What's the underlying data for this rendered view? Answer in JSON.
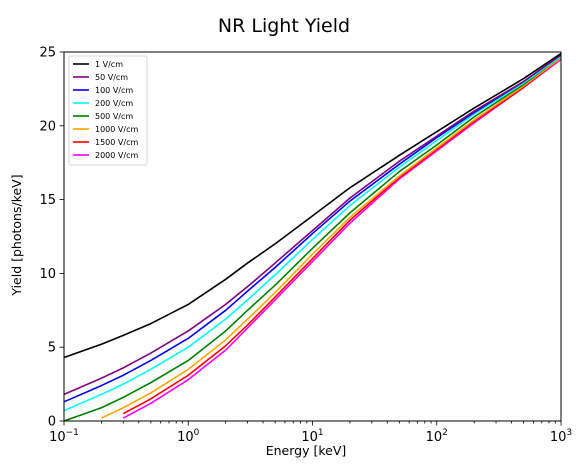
{
  "chart_data": {
    "type": "line",
    "title": "NR Light Yield",
    "xlabel": "Energy [keV]",
    "ylabel": "Yield [photons/keV]",
    "xscale": "log",
    "xlim": [
      0.1,
      1000
    ],
    "ylim": [
      0,
      25
    ],
    "x_ticks": [
      {
        "value": 0.1,
        "base": "10",
        "exp": "−1"
      },
      {
        "value": 1,
        "base": "10",
        "exp": "0"
      },
      {
        "value": 10,
        "base": "10",
        "exp": "1"
      },
      {
        "value": 100,
        "base": "10",
        "exp": "2"
      },
      {
        "value": 1000,
        "base": "10",
        "exp": "3"
      }
    ],
    "y_ticks": [
      0,
      5,
      10,
      15,
      20,
      25
    ],
    "grid": false,
    "legend_position": "top-left",
    "x": [
      0.1,
      0.2,
      0.3,
      0.5,
      1,
      2,
      3,
      5,
      10,
      20,
      50,
      100,
      200,
      500,
      1000
    ],
    "series": [
      {
        "name": "1 V/cm",
        "color": "#000000",
        "values": [
          4.3,
          5.2,
          5.8,
          6.6,
          7.9,
          9.6,
          10.7,
          12.0,
          13.9,
          15.8,
          18.0,
          19.6,
          21.2,
          23.2,
          24.9
        ]
      },
      {
        "name": "50 V/cm",
        "color": "#800080",
        "values": [
          1.8,
          2.9,
          3.6,
          4.6,
          6.1,
          7.9,
          9.1,
          10.7,
          12.9,
          15.1,
          17.6,
          19.3,
          21.0,
          23.0,
          24.8
        ]
      },
      {
        "name": "100 V/cm",
        "color": "#0000ff",
        "values": [
          1.3,
          2.4,
          3.1,
          4.1,
          5.6,
          7.5,
          8.8,
          10.4,
          12.7,
          14.9,
          17.4,
          19.2,
          20.9,
          23.0,
          24.8
        ]
      },
      {
        "name": "200 V/cm",
        "color": "#00ffff",
        "values": [
          0.7,
          1.8,
          2.5,
          3.5,
          5.0,
          6.9,
          8.2,
          9.9,
          12.3,
          14.6,
          17.2,
          19.0,
          20.8,
          22.9,
          24.7
        ]
      },
      {
        "name": "500 V/cm",
        "color": "#008000",
        "values": [
          0.0,
          0.9,
          1.6,
          2.6,
          4.1,
          6.1,
          7.5,
          9.2,
          11.7,
          14.1,
          16.9,
          18.7,
          20.6,
          22.8,
          24.7
        ]
      },
      {
        "name": "1000 V/cm",
        "color": "#ffa500",
        "values": [
          null,
          0.2,
          0.9,
          1.9,
          3.5,
          5.5,
          6.9,
          8.7,
          11.3,
          13.8,
          16.6,
          18.5,
          20.4,
          22.7,
          24.6
        ]
      },
      {
        "name": "1500 V/cm",
        "color": "#ff0000",
        "values": [
          null,
          null,
          0.5,
          1.5,
          3.1,
          5.1,
          6.5,
          8.4,
          11.0,
          13.6,
          16.5,
          18.4,
          20.3,
          22.6,
          24.6
        ]
      },
      {
        "name": "2000 V/cm",
        "color": "#ff00ff",
        "values": [
          null,
          null,
          0.2,
          1.2,
          2.8,
          4.8,
          6.3,
          8.2,
          10.8,
          13.4,
          16.4,
          18.3,
          20.2,
          22.6,
          24.5
        ]
      }
    ]
  }
}
